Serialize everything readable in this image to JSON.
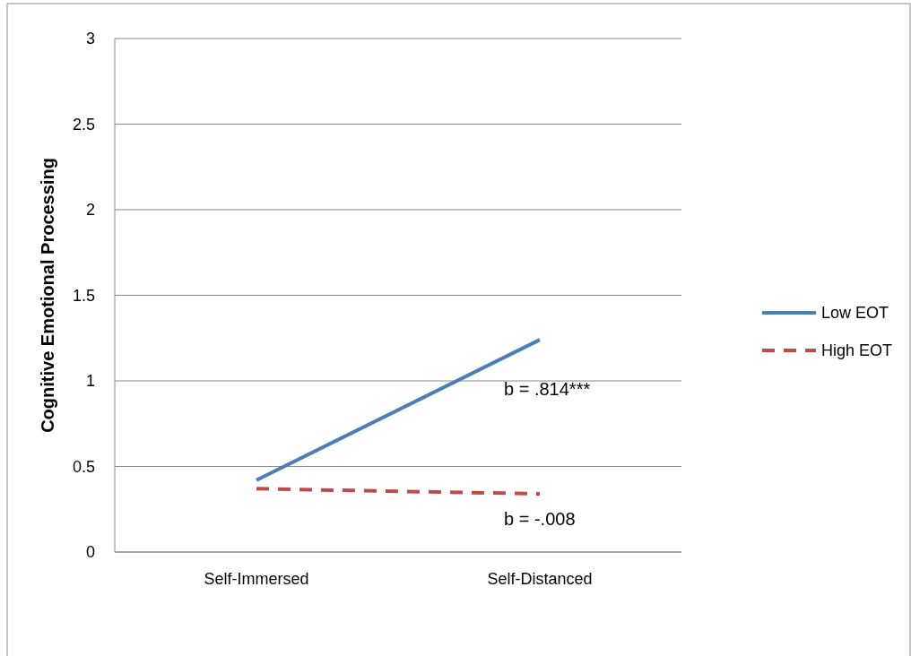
{
  "chart_data": {
    "type": "line",
    "ylabel": "Cognitive Emotional Processing",
    "categories": [
      "Self-Immersed",
      "Self-Distanced"
    ],
    "series": [
      {
        "name": "Low EOT",
        "color": "#4a7ebb",
        "values": [
          0.42,
          1.24
        ],
        "line_style": "solid"
      },
      {
        "name": "High EOT",
        "color": "#be4b48",
        "values": [
          0.37,
          0.34
        ],
        "line_style": "dashed"
      }
    ],
    "ylim": [
      0,
      3
    ],
    "yticks": [
      0,
      0.5,
      1,
      1.5,
      2,
      2.5,
      3
    ],
    "grid": "y",
    "legend": "right",
    "marker": "none",
    "annotations": [
      "b = .814***",
      "b = -.008"
    ]
  }
}
